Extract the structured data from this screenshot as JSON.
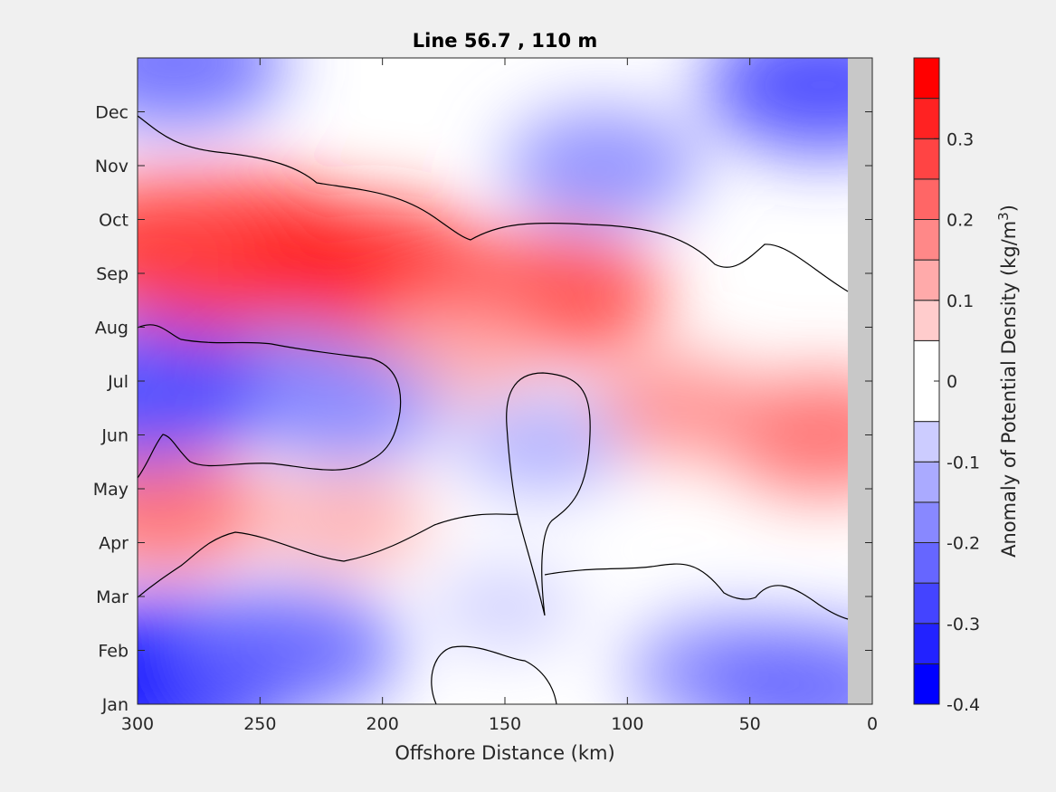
{
  "chart_data": {
    "type": "heatmap",
    "title": "Line 56.7 , 110 m",
    "xlabel": "Offshore Distance (km)",
    "ylabel": "",
    "xlim": [
      300,
      0
    ],
    "x_reversed": true,
    "x_ticks": [
      300,
      250,
      200,
      150,
      100,
      50,
      0
    ],
    "y_ticks": [
      "Jan",
      "Feb",
      "Mar",
      "Apr",
      "May",
      "Jun",
      "Jul",
      "Aug",
      "Sep",
      "Oct",
      "Nov",
      "Dec"
    ],
    "colorbar": {
      "label_main": "Anomaly of Potential Density (kg/m",
      "label_sup": "3",
      "label_end": ")",
      "range": [
        -0.4,
        0.4
      ],
      "levels": [
        -0.4,
        -0.35,
        -0.3,
        -0.25,
        -0.2,
        -0.15,
        -0.1,
        -0.05,
        0.05,
        0.1,
        0.15,
        0.2,
        0.25,
        0.3,
        0.35,
        0.4
      ],
      "ticks": [
        "-0.4",
        "-0.3",
        "-0.2",
        "-0.1",
        "0",
        "0.1",
        "0.2",
        "0.3"
      ],
      "tick_values": [
        -0.4,
        -0.3,
        -0.2,
        -0.1,
        0,
        0.1,
        0.2,
        0.3
      ]
    },
    "zero_contour_color": "#000000",
    "no_data_color": "#c8c8c8",
    "no_data_beyond_km": 10,
    "colors": {
      "negative_strong": "#0000ff",
      "neutral": "#ffffff",
      "positive_strong": "#ff0000"
    },
    "field_features": [
      {
        "x_km": 260,
        "month": 9.3,
        "value": 0.36
      },
      {
        "x_km": 290,
        "month": 9.5,
        "value": 0.28
      },
      {
        "x_km": 205,
        "month": 9.0,
        "value": 0.3
      },
      {
        "x_km": 130,
        "month": 8.6,
        "value": 0.25
      },
      {
        "x_km": 20,
        "month": 6.0,
        "value": 0.22
      },
      {
        "x_km": 290,
        "month": 4.6,
        "value": 0.22
      },
      {
        "x_km": 215,
        "month": 4.4,
        "value": 0.14
      },
      {
        "x_km": 170,
        "month": 7.5,
        "value": 0.14
      },
      {
        "x_km": 80,
        "month": 6.5,
        "value": 0.16
      },
      {
        "x_km": 290,
        "month": 1.5,
        "value": -0.36
      },
      {
        "x_km": 238,
        "month": 2.0,
        "value": -0.25
      },
      {
        "x_km": 285,
        "month": 12.9,
        "value": -0.25
      },
      {
        "x_km": 20,
        "month": 12.5,
        "value": -0.28
      },
      {
        "x_km": 110,
        "month": 11.0,
        "value": -0.2
      },
      {
        "x_km": 135,
        "month": 5.8,
        "value": -0.14
      },
      {
        "x_km": 240,
        "month": 7.0,
        "value": -0.2
      },
      {
        "x_km": 215,
        "month": 6.5,
        "value": -0.2
      },
      {
        "x_km": 298,
        "month": 6.8,
        "value": -0.3
      },
      {
        "x_km": 60,
        "month": 1.6,
        "value": -0.2
      },
      {
        "x_km": 25,
        "month": 1.3,
        "value": -0.25
      },
      {
        "x_km": 150,
        "month": 2.8,
        "value": -0.1
      }
    ]
  }
}
